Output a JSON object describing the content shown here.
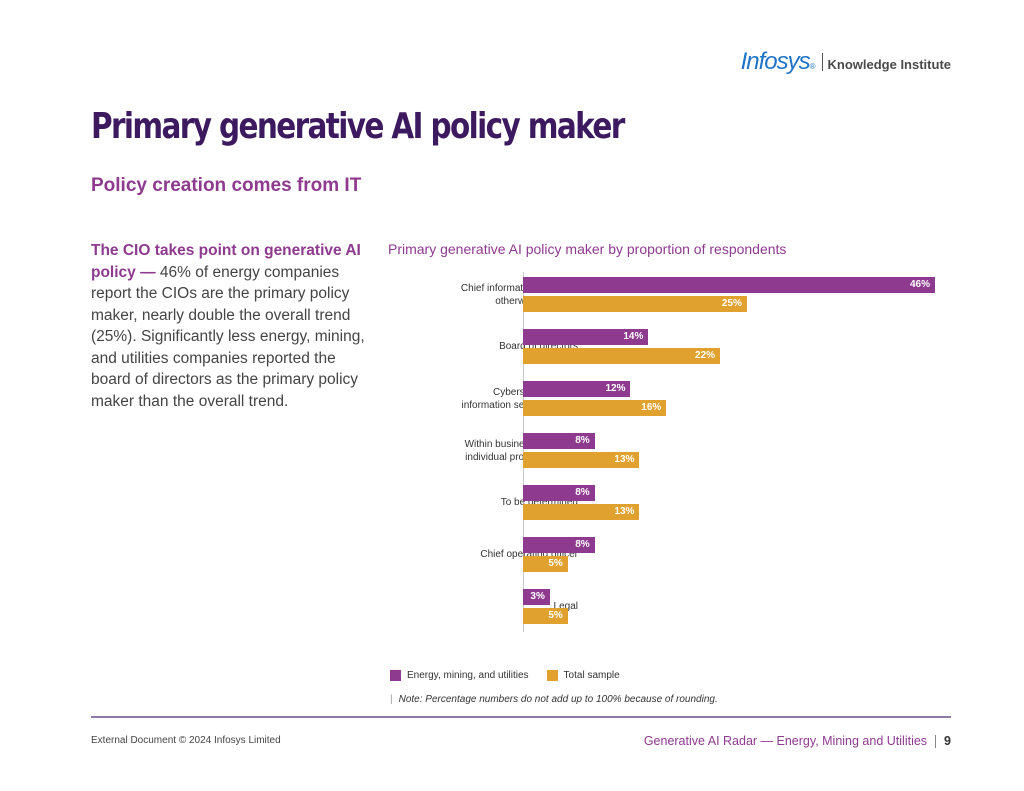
{
  "header": {
    "brand_name": "Infosys",
    "brand_mark": "®",
    "brand_subtitle": "Knowledge Institute"
  },
  "page": {
    "title": "Primary generative AI policy maker",
    "subtitle": "Policy creation comes from IT"
  },
  "intro": {
    "lead": "The CIO takes point on generative AI policy —",
    "body": " 46% of energy companies report the CIOs are the primary policy maker, nearly double the overall trend (25%). Significantly less energy, mining, and utilities companies reported the board of directors as the primary policy maker than the overall trend."
  },
  "colors": {
    "series_energy": "#8e3a8f",
    "series_total": "#e1a12e",
    "title": "#3d1a5f",
    "accent": "#8e3a8f",
    "brand": "#1f73c8"
  },
  "chart_data": {
    "type": "bar",
    "orientation": "horizontal",
    "title": "Primary generative AI policy maker by proportion of respondents",
    "categories": [
      [
        "Chief information officer or",
        "otherwise within IT"
      ],
      [
        "Board of directors"
      ],
      [
        "Cybersecurity/chief",
        "information security officer"
      ],
      [
        "Within business units and",
        "individual product owners"
      ],
      [
        "To be determined"
      ],
      [
        "Chief operating officer"
      ],
      [
        "Legal"
      ]
    ],
    "series": [
      {
        "name": "Energy, mining, and utilities",
        "values": [
          46,
          14,
          12,
          8,
          8,
          8,
          3
        ],
        "labels": [
          "46%",
          "14%",
          "12%",
          "8%",
          "8%",
          "8%",
          "3%"
        ]
      },
      {
        "name": "Total sample",
        "values": [
          25,
          22,
          16,
          13,
          13,
          5,
          5
        ],
        "labels": [
          "25%",
          "22%",
          "16%",
          "13%",
          "13%",
          "5%",
          "5%"
        ]
      }
    ],
    "xlim": [
      0,
      46
    ],
    "grid": false,
    "legend_position": "bottom-left"
  },
  "note": {
    "marker": "|",
    "text": "Note: Percentage numbers do not add up to 100% because of rounding."
  },
  "footer": {
    "left": "External Document © 2024 Infosys Limited",
    "right": "Generative AI Radar — Energy, Mining and Utilities",
    "page_number": "9"
  }
}
